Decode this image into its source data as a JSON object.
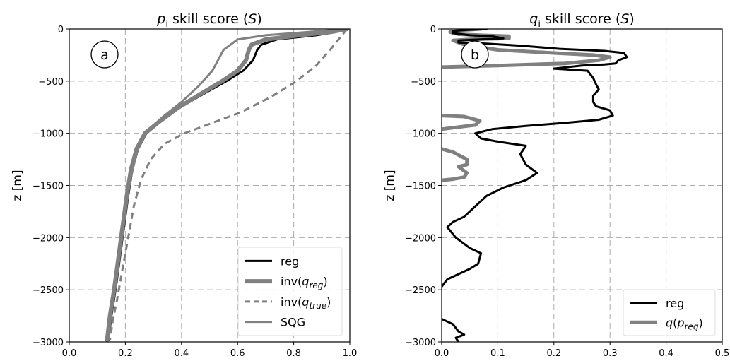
{
  "chart_data": [
    {
      "type": "line",
      "panel_label": "a",
      "title": "p_i skill score (S)",
      "title_parts": {
        "var": "p",
        "sub": "i",
        "rest": " skill score (",
        "sym": "S",
        "close": ")"
      },
      "xlabel": "",
      "ylabel": "z [m]",
      "xlim": [
        0.0,
        1.0
      ],
      "ylim": [
        -3000,
        0
      ],
      "x_ticks": [
        "0.0",
        "0.2",
        "0.4",
        "0.6",
        "0.8",
        "1.0"
      ],
      "y_ticks": [
        "0",
        "−500",
        "−1000",
        "−1500",
        "−2000",
        "−2500",
        "−3000"
      ],
      "grid": true,
      "legend_position": "lower-right",
      "series": [
        {
          "name": "reg",
          "name_base": "reg",
          "name_sub": "",
          "color": "#000000",
          "width": 3,
          "style": "solid",
          "points": [
            [
              0.985,
              0
            ],
            [
              0.95,
              -30
            ],
            [
              0.88,
              -60
            ],
            [
              0.74,
              -100
            ],
            [
              0.685,
              -150
            ],
            [
              0.67,
              -200
            ],
            [
              0.655,
              -300
            ],
            [
              0.62,
              -400
            ],
            [
              0.56,
              -500
            ],
            [
              0.48,
              -620
            ],
            [
              0.39,
              -760
            ],
            [
              0.32,
              -900
            ],
            [
              0.275,
              -1000
            ],
            [
              0.245,
              -1150
            ],
            [
              0.225,
              -1350
            ],
            [
              0.21,
              -1600
            ],
            [
              0.195,
              -1900
            ],
            [
              0.18,
              -2200
            ],
            [
              0.165,
              -2500
            ],
            [
              0.15,
              -2750
            ],
            [
              0.14,
              -2980
            ]
          ]
        },
        {
          "name": "inv(q_reg)",
          "name_base": "inv(q",
          "name_sub": "reg",
          "color": "#808080",
          "width": 6,
          "style": "solid",
          "points": [
            [
              0.99,
              0
            ],
            [
              0.93,
              -30
            ],
            [
              0.82,
              -60
            ],
            [
              0.7,
              -100
            ],
            [
              0.65,
              -150
            ],
            [
              0.64,
              -200
            ],
            [
              0.63,
              -300
            ],
            [
              0.6,
              -400
            ],
            [
              0.545,
              -500
            ],
            [
              0.47,
              -620
            ],
            [
              0.385,
              -760
            ],
            [
              0.315,
              -900
            ],
            [
              0.27,
              -1000
            ],
            [
              0.24,
              -1150
            ],
            [
              0.22,
              -1350
            ],
            [
              0.205,
              -1600
            ],
            [
              0.19,
              -1900
            ],
            [
              0.175,
              -2200
            ],
            [
              0.16,
              -2500
            ],
            [
              0.145,
              -2750
            ],
            [
              0.135,
              -2980
            ]
          ]
        },
        {
          "name": "inv(q_true)",
          "name_base": "inv(q",
          "name_sub": "true",
          "color": "#808080",
          "width": 3,
          "style": "dashed",
          "points": [
            [
              0.99,
              0
            ],
            [
              0.96,
              -100
            ],
            [
              0.93,
              -200
            ],
            [
              0.88,
              -350
            ],
            [
              0.81,
              -500
            ],
            [
              0.72,
              -650
            ],
            [
              0.61,
              -800
            ],
            [
              0.49,
              -920
            ],
            [
              0.41,
              -1000
            ],
            [
              0.34,
              -1100
            ],
            [
              0.29,
              -1250
            ],
            [
              0.255,
              -1450
            ],
            [
              0.23,
              -1700
            ],
            [
              0.21,
              -2000
            ],
            [
              0.19,
              -2300
            ],
            [
              0.17,
              -2600
            ],
            [
              0.155,
              -2800
            ],
            [
              0.145,
              -2980
            ]
          ]
        },
        {
          "name": "SQG",
          "name_base": "SQG",
          "name_sub": "",
          "color": "#808080",
          "width": 3,
          "style": "solid",
          "points": [
            [
              0.99,
              0
            ],
            [
              0.85,
              -30
            ],
            [
              0.7,
              -60
            ],
            [
              0.6,
              -100
            ],
            [
              0.55,
              -200
            ],
            [
              0.51,
              -400
            ],
            [
              0.46,
              -550
            ],
            [
              0.4,
              -700
            ],
            [
              0.33,
              -850
            ],
            [
              0.28,
              -980
            ],
            [
              0.25,
              -1100
            ],
            [
              0.23,
              -1300
            ],
            [
              0.21,
              -1550
            ],
            [
              0.2,
              -1700
            ]
          ]
        }
      ]
    },
    {
      "type": "line",
      "panel_label": "b",
      "title": "q_i skill score (S)",
      "title_parts": {
        "var": "q",
        "sub": "i",
        "rest": " skill score (",
        "sym": "S",
        "close": ")"
      },
      "xlabel": "",
      "ylabel": "z [m]",
      "xlim": [
        0.0,
        0.5
      ],
      "ylim": [
        -3000,
        0
      ],
      "x_ticks": [
        "0.0",
        "0.1",
        "0.2",
        "0.3",
        "0.4",
        "0.5"
      ],
      "y_ticks": [
        "0",
        "−500",
        "−1000",
        "−1500",
        "−2000",
        "−2500",
        "−3000"
      ],
      "grid": true,
      "legend_position": "lower-right",
      "series": [
        {
          "name": "q(p_reg)",
          "name_base": "q(p",
          "name_sub": "reg",
          "color": "#808080",
          "width": 5,
          "style": "solid",
          "segments": [
            [
              [
                0.07,
                0
              ],
              [
                0.04,
                -10
              ],
              [
                0.015,
                -30
              ],
              [
                0.03,
                -50
              ],
              [
                0.07,
                -60
              ],
              [
                0.12,
                -70
              ],
              [
                0.12,
                -90
              ],
              [
                0.05,
                -100
              ],
              [
                0.02,
                -110
              ],
              [
                0.04,
                -150
              ],
              [
                0.1,
                -200
              ],
              [
                0.2,
                -230
              ],
              [
                0.27,
                -250
              ],
              [
                0.3,
                -270
              ],
              [
                0.28,
                -300
              ],
              [
                0.22,
                -330
              ],
              [
                0.1,
                -350
              ],
              [
                0.0,
                -365
              ]
            ],
            [
              [
                0.0,
                -830
              ],
              [
                0.04,
                -840
              ],
              [
                0.068,
                -880
              ],
              [
                0.06,
                -920
              ],
              [
                0.03,
                -940
              ],
              [
                0.0,
                -960
              ]
            ],
            [
              [
                0.0,
                -1150
              ],
              [
                0.02,
                -1180
              ],
              [
                0.045,
                -1250
              ],
              [
                0.045,
                -1300
              ],
              [
                0.03,
                -1320
              ],
              [
                0.045,
                -1380
              ],
              [
                0.04,
                -1420
              ],
              [
                0.02,
                -1440
              ],
              [
                0.0,
                -1450
              ]
            ]
          ]
        },
        {
          "name": "reg",
          "name_base": "reg",
          "name_sub": "",
          "color": "#000000",
          "width": 3,
          "style": "solid",
          "segments": [
            [
              [
                0.08,
                0
              ],
              [
                0.04,
                -10
              ],
              [
                0.02,
                -20
              ],
              [
                0.02,
                -40
              ],
              [
                0.05,
                -60
              ],
              [
                0.09,
                -70
              ],
              [
                0.11,
                -90
              ],
              [
                0.07,
                -100
              ],
              [
                0.03,
                -110
              ],
              [
                0.03,
                -130
              ],
              [
                0.08,
                -140
              ],
              [
                0.14,
                -160
              ],
              [
                0.21,
                -190
              ],
              [
                0.29,
                -210
              ],
              [
                0.325,
                -230
              ],
              [
                0.33,
                -270
              ],
              [
                0.315,
                -300
              ],
              [
                0.31,
                -330
              ],
              [
                0.29,
                -340
              ],
              [
                0.25,
                -350
              ],
              [
                0.2,
                -380
              ],
              [
                0.26,
                -400
              ],
              [
                0.27,
                -470
              ],
              [
                0.275,
                -530
              ],
              [
                0.28,
                -580
              ],
              [
                0.27,
                -640
              ],
              [
                0.27,
                -700
              ],
              [
                0.275,
                -740
              ],
              [
                0.3,
                -780
              ],
              [
                0.305,
                -830
              ],
              [
                0.28,
                -870
              ],
              [
                0.22,
                -900
              ],
              [
                0.15,
                -930
              ],
              [
                0.09,
                -960
              ],
              [
                0.06,
                -1000
              ],
              [
                0.07,
                -1050
              ],
              [
                0.1,
                -1080
              ],
              [
                0.15,
                -1120
              ],
              [
                0.14,
                -1200
              ],
              [
                0.15,
                -1300
              ],
              [
                0.17,
                -1380
              ],
              [
                0.15,
                -1450
              ],
              [
                0.11,
                -1520
              ],
              [
                0.08,
                -1600
              ],
              [
                0.06,
                -1700
              ],
              [
                0.04,
                -1800
              ],
              [
                0.02,
                -1850
              ],
              [
                0.01,
                -1900
              ],
              [
                0.025,
                -2000
              ],
              [
                0.05,
                -2100
              ],
              [
                0.07,
                -2150
              ],
              [
                0.065,
                -2250
              ],
              [
                0.05,
                -2300
              ],
              [
                0.03,
                -2350
              ],
              [
                0.01,
                -2400
              ],
              [
                0.0,
                -2470
              ]
            ],
            [
              [
                0.0,
                -2780
              ],
              [
                0.02,
                -2830
              ],
              [
                0.03,
                -2900
              ],
              [
                0.04,
                -2930
              ],
              [
                0.025,
                -2960
              ],
              [
                0.03,
                -3000
              ]
            ]
          ]
        }
      ]
    }
  ]
}
